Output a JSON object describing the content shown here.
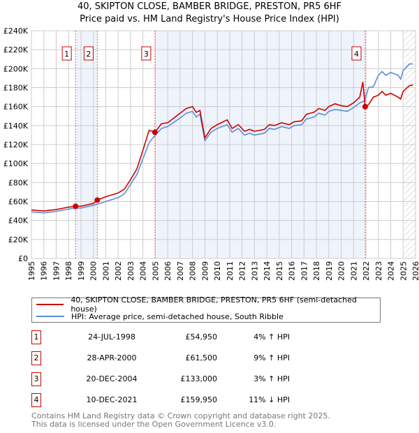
{
  "chart_data": {
    "type": "line",
    "title": "40, SKIPTON CLOSE, BAMBER BRIDGE, PRESTON, PR5 6HF",
    "subtitle": "Price paid vs. HM Land Registry's House Price Index (HPI)",
    "xlim": [
      1995,
      2026
    ],
    "ylim": [
      0,
      240000
    ],
    "x_ticks": [
      "1995",
      "1996",
      "1997",
      "1998",
      "1999",
      "2000",
      "2001",
      "2002",
      "2003",
      "2004",
      "2005",
      "2006",
      "2007",
      "2008",
      "2009",
      "2010",
      "2011",
      "2012",
      "2013",
      "2014",
      "2015",
      "2016",
      "2017",
      "2018",
      "2019",
      "2020",
      "2021",
      "2022",
      "2023",
      "2024",
      "2025",
      "2026"
    ],
    "y_ticks": [
      "£0",
      "£20K",
      "£40K",
      "£60K",
      "£80K",
      "£100K",
      "£120K",
      "£140K",
      "£160K",
      "£180K",
      "£200K",
      "£220K",
      "£240K"
    ],
    "grid": true,
    "series": [
      {
        "name": "40, SKIPTON CLOSE, BAMBER BRIDGE, PRESTON, PR5 6HF (semi-detached house)",
        "color": "#cc0000",
        "points": [
          [
            1995,
            51
          ],
          [
            1996,
            50
          ],
          [
            1997,
            51.5
          ],
          [
            1998,
            54
          ],
          [
            1998.56,
            54.95
          ],
          [
            1999,
            55
          ],
          [
            2000,
            58
          ],
          [
            2000.32,
            61.5
          ],
          [
            2001,
            65
          ],
          [
            2002,
            69
          ],
          [
            2002.5,
            73
          ],
          [
            2003,
            83
          ],
          [
            2003.5,
            94
          ],
          [
            2004,
            114
          ],
          [
            2004.5,
            135
          ],
          [
            2004.97,
            133
          ],
          [
            2005.5,
            142
          ],
          [
            2006,
            143
          ],
          [
            2007,
            153
          ],
          [
            2007.5,
            158
          ],
          [
            2008,
            160
          ],
          [
            2008.3,
            154
          ],
          [
            2008.6,
            156
          ],
          [
            2009,
            127
          ],
          [
            2009.5,
            137
          ],
          [
            2010,
            141
          ],
          [
            2010.8,
            146
          ],
          [
            2011.2,
            137
          ],
          [
            2011.7,
            141
          ],
          [
            2012.2,
            134
          ],
          [
            2012.6,
            136
          ],
          [
            2013,
            134
          ],
          [
            2013.8,
            136
          ],
          [
            2014.2,
            141
          ],
          [
            2014.6,
            140
          ],
          [
            2015.2,
            143
          ],
          [
            2015.8,
            141
          ],
          [
            2016.2,
            144
          ],
          [
            2016.8,
            145
          ],
          [
            2017.2,
            152
          ],
          [
            2017.8,
            154
          ],
          [
            2018.2,
            158
          ],
          [
            2018.7,
            156
          ],
          [
            2019,
            160
          ],
          [
            2019.5,
            163
          ],
          [
            2020,
            161
          ],
          [
            2020.5,
            160
          ],
          [
            2021,
            164
          ],
          [
            2021.5,
            170
          ],
          [
            2021.75,
            186
          ],
          [
            2021.94,
            160
          ],
          [
            2022.2,
            162
          ],
          [
            2022.6,
            170
          ],
          [
            2023,
            172
          ],
          [
            2023.3,
            176
          ],
          [
            2023.6,
            172
          ],
          [
            2024,
            174
          ],
          [
            2024.6,
            170
          ],
          [
            2024.8,
            168
          ],
          [
            2025,
            176
          ],
          [
            2025.5,
            182
          ],
          [
            2025.8,
            183
          ]
        ]
      },
      {
        "name": "HPI: Average price, semi-detached house, South Ribble",
        "color": "#5b8fd6",
        "points": [
          [
            1995,
            49
          ],
          [
            1996,
            48
          ],
          [
            1997,
            49.5
          ],
          [
            1998,
            52
          ],
          [
            1998.5,
            53
          ],
          [
            1999,
            53
          ],
          [
            2000,
            56
          ],
          [
            2000.3,
            57
          ],
          [
            2001,
            60
          ],
          [
            2002,
            64
          ],
          [
            2002.5,
            68
          ],
          [
            2003,
            78
          ],
          [
            2003.5,
            88
          ],
          [
            2004,
            105
          ],
          [
            2004.5,
            122
          ],
          [
            2005,
            130
          ],
          [
            2005.5,
            137
          ],
          [
            2006,
            139
          ],
          [
            2007,
            148
          ],
          [
            2007.5,
            153
          ],
          [
            2008,
            155
          ],
          [
            2008.3,
            149
          ],
          [
            2008.6,
            152
          ],
          [
            2009,
            124
          ],
          [
            2009.5,
            133
          ],
          [
            2010,
            137
          ],
          [
            2010.8,
            141
          ],
          [
            2011.2,
            133
          ],
          [
            2011.7,
            137
          ],
          [
            2012.2,
            130
          ],
          [
            2012.6,
            132
          ],
          [
            2013,
            130
          ],
          [
            2013.8,
            132
          ],
          [
            2014.2,
            137
          ],
          [
            2014.6,
            136
          ],
          [
            2015.2,
            139
          ],
          [
            2015.8,
            137
          ],
          [
            2016.2,
            140
          ],
          [
            2016.8,
            141
          ],
          [
            2017.2,
            147
          ],
          [
            2017.8,
            149
          ],
          [
            2018.2,
            153
          ],
          [
            2018.7,
            151
          ],
          [
            2019,
            155
          ],
          [
            2019.5,
            157
          ],
          [
            2020,
            156
          ],
          [
            2020.5,
            155
          ],
          [
            2021,
            159
          ],
          [
            2021.5,
            164
          ],
          [
            2021.9,
            166
          ],
          [
            2022.2,
            180
          ],
          [
            2022.6,
            181
          ],
          [
            2023,
            193
          ],
          [
            2023.3,
            197
          ],
          [
            2023.6,
            193
          ],
          [
            2024,
            196
          ],
          [
            2024.6,
            193
          ],
          [
            2024.8,
            189
          ],
          [
            2025,
            198
          ],
          [
            2025.5,
            205
          ],
          [
            2025.8,
            205
          ]
        ]
      }
    ],
    "sales": [
      {
        "n": "1",
        "x": 1998.56,
        "value": 54950,
        "date": "24-JUL-1998",
        "price": "£54,950",
        "pct": "4% ↑ HPI"
      },
      {
        "n": "2",
        "x": 2000.32,
        "value": 61500,
        "date": "28-APR-2000",
        "price": "£61,500",
        "pct": "9% ↑ HPI"
      },
      {
        "n": "3",
        "x": 2004.97,
        "value": 133000,
        "date": "20-DEC-2004",
        "price": "£133,000",
        "pct": "3% ↑ HPI"
      },
      {
        "n": "4",
        "x": 2021.94,
        "value": 159950,
        "date": "10-DEC-2021",
        "price": "£159,950",
        "pct": "11% ↓ HPI"
      }
    ],
    "shaded": [
      [
        1998.56,
        2000.32
      ],
      [
        2004.97,
        2021.94
      ]
    ],
    "forecast_from": 2025.1,
    "legend_placement": "bottom"
  },
  "footer": [
    "Contains HM Land Registry data © Crown copyright and database right 2025.",
    "This data is licensed under the Open Government Licence v3.0."
  ]
}
